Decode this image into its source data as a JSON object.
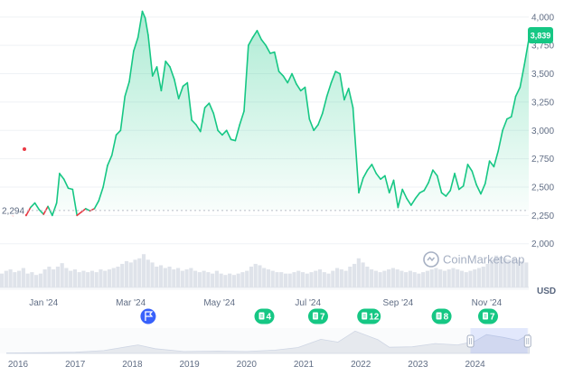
{
  "chart_data": {
    "type": "area",
    "currency_label": "USD",
    "watermark": "CoinMarketCap",
    "ylim": [
      1950,
      4150
    ],
    "y_ticks": [
      2000,
      2250,
      2500,
      2750,
      3000,
      3250,
      3500,
      3750,
      4000
    ],
    "y_tick_labels": [
      "2,000",
      "2,250",
      "2,500",
      "2,750",
      "3,000",
      "3,250",
      "3,500",
      "3,750",
      "4,000"
    ],
    "baseline": 2294,
    "baseline_label": "2,294",
    "current_price": 3839,
    "current_price_label": "3,839",
    "x_month_labels": [
      "Jan '24",
      "Mar '24",
      "May '24",
      "Jul '24",
      "Sep '24",
      "Nov '24"
    ],
    "x_month_dates": [
      "2024-01-01",
      "2024-03-01",
      "2024-05-01",
      "2024-07-01",
      "2024-09-01",
      "2024-11-01"
    ],
    "series": [
      {
        "x": [
          "2023-12-02",
          "2023-12-05",
          "2023-12-08",
          "2023-12-11",
          "2023-12-14",
          "2023-12-17",
          "2023-12-20",
          "2023-12-23",
          "2023-12-26",
          "2023-12-29",
          "2024-01-01",
          "2024-01-04",
          "2024-01-07",
          "2024-01-10",
          "2024-01-12",
          "2024-01-15",
          "2024-01-18",
          "2024-01-21",
          "2024-01-24",
          "2024-01-27",
          "2024-01-30",
          "2024-02-02",
          "2024-02-05",
          "2024-02-08",
          "2024-02-11",
          "2024-02-14",
          "2024-02-17",
          "2024-02-20",
          "2024-02-23",
          "2024-02-26",
          "2024-02-29",
          "2024-03-03",
          "2024-03-06",
          "2024-03-09",
          "2024-03-11",
          "2024-03-13",
          "2024-03-16",
          "2024-03-19",
          "2024-03-22",
          "2024-03-25",
          "2024-03-28",
          "2024-03-31",
          "2024-04-03",
          "2024-04-06",
          "2024-04-09",
          "2024-04-12",
          "2024-04-15",
          "2024-04-18",
          "2024-04-21",
          "2024-04-24",
          "2024-04-27",
          "2024-04-30",
          "2024-05-03",
          "2024-05-06",
          "2024-05-09",
          "2024-05-12",
          "2024-05-15",
          "2024-05-18",
          "2024-05-21",
          "2024-05-24",
          "2024-05-27",
          "2024-05-30",
          "2024-06-02",
          "2024-06-05",
          "2024-06-08",
          "2024-06-11",
          "2024-06-14",
          "2024-06-17",
          "2024-06-20",
          "2024-06-23",
          "2024-06-26",
          "2024-06-29",
          "2024-07-02",
          "2024-07-05",
          "2024-07-08",
          "2024-07-11",
          "2024-07-14",
          "2024-07-17",
          "2024-07-20",
          "2024-07-23",
          "2024-07-26",
          "2024-07-29",
          "2024-08-01",
          "2024-08-05",
          "2024-08-08",
          "2024-08-11",
          "2024-08-14",
          "2024-08-17",
          "2024-08-20",
          "2024-08-23",
          "2024-08-26",
          "2024-08-29",
          "2024-09-01",
          "2024-09-04",
          "2024-09-07",
          "2024-09-10",
          "2024-09-13",
          "2024-09-16",
          "2024-09-19",
          "2024-09-22",
          "2024-09-25",
          "2024-09-28",
          "2024-10-01",
          "2024-10-04",
          "2024-10-07",
          "2024-10-10",
          "2024-10-13",
          "2024-10-16",
          "2024-10-19",
          "2024-10-22",
          "2024-10-25",
          "2024-10-28",
          "2024-10-31",
          "2024-11-03",
          "2024-11-06",
          "2024-11-09",
          "2024-11-12",
          "2024-11-15",
          "2024-11-18",
          "2024-11-21",
          "2024-11-24",
          "2024-11-27",
          "2024-11-30"
        ],
        "values": [
          2294,
          2280,
          2260,
          2250,
          2310,
          2270,
          2250,
          2320,
          2360,
          2300,
          2260,
          2330,
          2250,
          2360,
          2620,
          2570,
          2490,
          2480,
          2250,
          2280,
          2310,
          2290,
          2310,
          2380,
          2500,
          2690,
          2780,
          2960,
          3000,
          3300,
          3430,
          3700,
          3820,
          4050,
          3990,
          3840,
          3480,
          3560,
          3350,
          3610,
          3560,
          3450,
          3280,
          3390,
          3420,
          3090,
          3050,
          2990,
          3200,
          3240,
          3150,
          3000,
          2960,
          3000,
          2920,
          2910,
          3050,
          3170,
          3750,
          3820,
          3880,
          3800,
          3750,
          3680,
          3690,
          3520,
          3480,
          3420,
          3500,
          3410,
          3350,
          3380,
          3100,
          3000,
          3050,
          3150,
          3300,
          3420,
          3520,
          3500,
          3270,
          3370,
          3200,
          2450,
          2580,
          2650,
          2700,
          2620,
          2570,
          2600,
          2450,
          2560,
          2320,
          2480,
          2400,
          2340,
          2400,
          2450,
          2470,
          2540,
          2650,
          2600,
          2450,
          2420,
          2470,
          2620,
          2480,
          2510,
          2700,
          2640,
          2520,
          2440,
          2530,
          2730,
          2680,
          2820,
          3000,
          3100,
          3120,
          3300,
          3380,
          3580,
          3800
        ]
      }
    ],
    "volume_bars": [
      20,
      24,
      26,
      22,
      24,
      28,
      20,
      22,
      18,
      20,
      26,
      30,
      26,
      30,
      35,
      28,
      24,
      26,
      22,
      24,
      22,
      24,
      22,
      26,
      24,
      26,
      28,
      30,
      34,
      38,
      36,
      40,
      42,
      48,
      40,
      36,
      30,
      32,
      28,
      30,
      26,
      28,
      24,
      26,
      28,
      24,
      22,
      24,
      22,
      20,
      24,
      20,
      18,
      20,
      18,
      20,
      22,
      24,
      30,
      34,
      32,
      28,
      26,
      24,
      22,
      22,
      20,
      20,
      22,
      24,
      22,
      20,
      22,
      24,
      26,
      22,
      20,
      24,
      28,
      26,
      24,
      30,
      34,
      42,
      36,
      30,
      26,
      24,
      22,
      24,
      26,
      28,
      26,
      24,
      22,
      24,
      22,
      20,
      22,
      24,
      26,
      28,
      26,
      24,
      26,
      28,
      26,
      24,
      22,
      24,
      26,
      28,
      30,
      34,
      40,
      46,
      44,
      42,
      40,
      42,
      40,
      38,
      36
    ],
    "event_flag_label": "",
    "event_counts": [
      "4",
      "7",
      "12",
      "8",
      "7"
    ],
    "event_dates": [
      "2024-06-01",
      "2024-07-08",
      "2024-08-12",
      "2024-10-01",
      "2024-11-02"
    ],
    "flag_date": "2024-03-13",
    "navigator": {
      "year_labels": [
        "2016",
        "2017",
        "2018",
        "2019",
        "2020",
        "2021",
        "2022",
        "2023",
        "2024"
      ],
      "selection_start_year": 2023.92,
      "selection_end_year": 2024.92
    },
    "colors": {
      "line_up": "#16c784",
      "line_down": "#ea3943",
      "fill_top": "#16c784",
      "price_badge": "#16c784",
      "flag_badge": "#3861fb",
      "event_badge": "#16c784"
    }
  }
}
